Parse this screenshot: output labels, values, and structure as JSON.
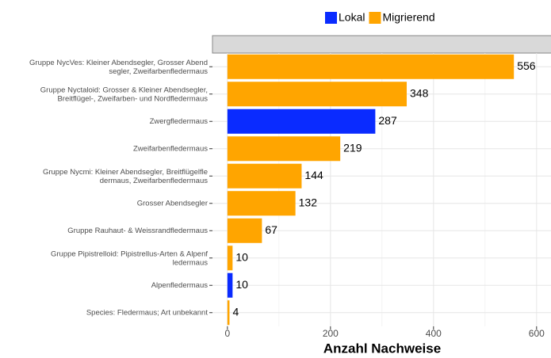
{
  "chart_data": {
    "type": "barh",
    "categories": [
      "Gruppe NycVes: Kleiner Abendsegler, Grosser Abend\nsegler, Zweifarbenfledermaus",
      "Gruppe Nyctaloid: Grosser & Kleiner Abendsegler,\nBreitflügel-, Zweifarben- und Nordfledermaus",
      "Zwergfledermaus",
      "Zweifarbenfledermaus",
      "Gruppe Nycmi: Kleiner Abendsegler, Breitflügelfle\ndermaus, Zweifarbenfledermaus",
      "Grosser Abendsegler",
      "Gruppe Rauhaut- & Weissrandfledermaus",
      "Gruppe Pipistrelloid: Pipistrellus-Arten & Alpenf\nledermaus",
      "Alpenfledermaus",
      "Species: Fledermaus; Art unbekannt"
    ],
    "series": [
      {
        "name": "Lokal",
        "color": "#0a2bff",
        "values": [
          null,
          null,
          287,
          null,
          null,
          null,
          null,
          null,
          10,
          null
        ]
      },
      {
        "name": "Migrierend",
        "color": "#ffa500",
        "values": [
          556,
          348,
          null,
          219,
          144,
          132,
          67,
          10,
          null,
          4
        ]
      }
    ],
    "xlabel": "Anzahl Nachweise",
    "xlim": [
      -29,
      628
    ],
    "xticks": [
      0,
      200,
      400,
      600
    ],
    "x_minor_ticks": [
      100,
      300,
      500
    ],
    "grid": true,
    "legend": "top"
  }
}
